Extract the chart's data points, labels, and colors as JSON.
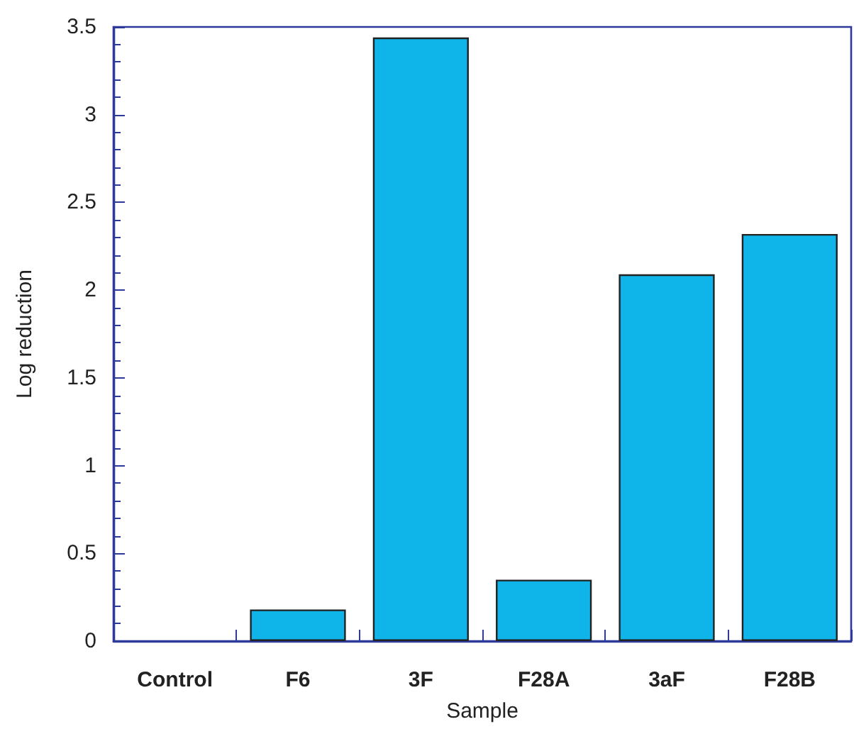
{
  "chart_data": {
    "type": "bar",
    "xlabel": "Sample",
    "ylabel": "Log reduction",
    "categories": [
      "Control",
      "F6",
      "3F",
      "F28A",
      "3aF",
      "F28B"
    ],
    "values": [
      0,
      0.18,
      3.44,
      0.35,
      2.09,
      2.32
    ],
    "color": "#0fb5e8",
    "ylim": [
      0,
      3.5
    ],
    "yticks": [
      0,
      0.5,
      1,
      1.5,
      2,
      2.5,
      3,
      3.5
    ],
    "grid": false
  }
}
